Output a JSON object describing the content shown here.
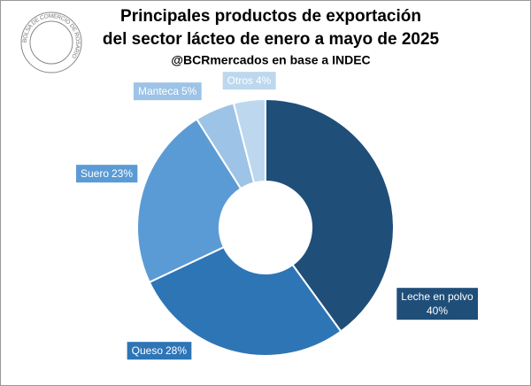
{
  "logo_text": "BOLSA DE COMERCIO DE ROSARIO",
  "chart_data": {
    "type": "pie",
    "title": [
      "Principales productos de exportación",
      "del sector lácteo de enero a mayo de 2025"
    ],
    "subtitle": "@BCRmercados en base a INDEC",
    "categories": [
      "Leche en polvo",
      "Queso",
      "Suero",
      "Manteca",
      "Otros"
    ],
    "values": [
      40,
      28,
      23,
      5,
      4
    ],
    "value_labels": [
      "40%",
      "28%",
      "23%",
      "5%",
      "4%"
    ],
    "colors": [
      "#1f4e79",
      "#2e75b6",
      "#5b9bd5",
      "#9dc3e6",
      "#bdd7ee"
    ],
    "donut": true
  }
}
